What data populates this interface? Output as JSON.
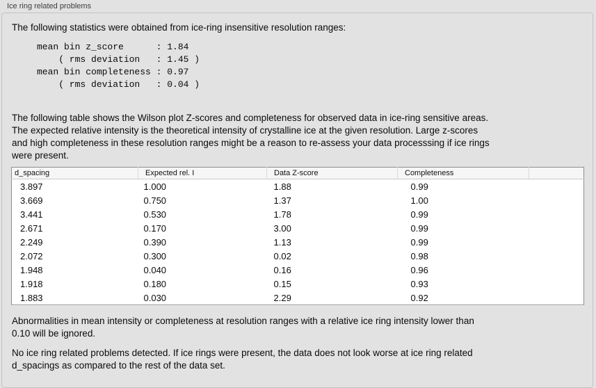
{
  "panel": {
    "title": "Ice ring related problems"
  },
  "intro_text": "The following statistics were obtained from ice-ring insensitive resolution ranges:",
  "stats_block": "mean bin z_score      : 1.84\n    ( rms deviation   : 1.45 )\nmean bin completeness : 0.97\n    ( rms deviation   : 0.04 )",
  "description_text": "The following table shows the Wilson plot Z-scores and completeness for observed data in ice-ring sensitive areas.\nThe expected relative intensity is the theoretical intensity of crystalline ice at the given resolution. Large z-scores\nand high completeness in these resolution ranges might be a reason to re-assess your data processsing if ice rings\nwere present.",
  "table": {
    "columns": [
      "d_spacing",
      "Expected rel. I",
      "Data Z-score",
      "Completeness"
    ],
    "rows": [
      [
        "3.897",
        "1.000",
        "1.88",
        "0.99"
      ],
      [
        "3.669",
        "0.750",
        "1.37",
        "1.00"
      ],
      [
        "3.441",
        "0.530",
        "1.78",
        "0.99"
      ],
      [
        "2.671",
        "0.170",
        "3.00",
        "0.99"
      ],
      [
        "2.249",
        "0.390",
        "1.13",
        "0.99"
      ],
      [
        "2.072",
        "0.300",
        "0.02",
        "0.98"
      ],
      [
        "1.948",
        "0.040",
        "0.16",
        "0.96"
      ],
      [
        "1.918",
        "0.180",
        "0.15",
        "0.93"
      ],
      [
        "1.883",
        "0.030",
        "2.29",
        "0.92"
      ]
    ]
  },
  "note_text": "Abnormalities in mean intensity or completeness at resolution ranges with a relative ice ring intensity lower than\n0.10 will be ignored.",
  "conclusion_text": "No ice ring related problems detected. If ice rings were present, the data does not look worse at ice ring related\nd_spacings as compared to the rest of the data set."
}
